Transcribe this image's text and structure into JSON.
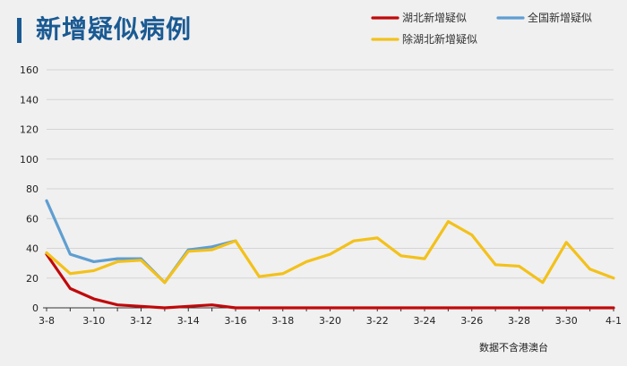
{
  "title": "新增疑似病例",
  "footnote": "数据不含港澳台",
  "colors": {
    "background": "#f0f0f0",
    "title": "#1a5a93",
    "grid": "#d4d4d4",
    "axis": "#333333"
  },
  "chart_data": {
    "type": "line",
    "title": "新增疑似病例",
    "xlabel": "",
    "ylabel": "",
    "ylim": [
      0,
      160
    ],
    "yticks": [
      0,
      20,
      40,
      60,
      80,
      100,
      120,
      140,
      160
    ],
    "grid": true,
    "legend_position": "top-right",
    "x": [
      "3-8",
      "3-9",
      "3-10",
      "3-11",
      "3-12",
      "3-13",
      "3-14",
      "3-15",
      "3-16",
      "3-17",
      "3-18",
      "3-19",
      "3-20",
      "3-21",
      "3-22",
      "3-23",
      "3-24",
      "3-25",
      "3-26",
      "3-27",
      "3-28",
      "3-29",
      "3-30",
      "3-31",
      "4-1"
    ],
    "xtick_labels": [
      "3-8",
      "3-10",
      "3-12",
      "3-14",
      "3-16",
      "3-18",
      "3-20",
      "3-22",
      "3-24",
      "3-26",
      "3-28",
      "3-30",
      "4-1"
    ],
    "series": [
      {
        "name": "湖北新增疑似",
        "color": "#c0090b",
        "values": [
          36,
          13,
          6,
          2,
          1,
          0,
          1,
          2,
          0,
          0,
          0,
          0,
          0,
          0,
          0,
          0,
          0,
          0,
          0,
          0,
          0,
          0,
          0,
          0,
          0
        ]
      },
      {
        "name": "全国新增疑似",
        "color": "#5f9ed1",
        "values": [
          72,
          36,
          31,
          33,
          33,
          17,
          39,
          41,
          45,
          null,
          null,
          null,
          null,
          null,
          null,
          null,
          null,
          null,
          null,
          null,
          null,
          null,
          null,
          null,
          null
        ]
      },
      {
        "name": "除湖北新增疑似",
        "color": "#f3c11b",
        "values": [
          37,
          23,
          25,
          31,
          32,
          17,
          38,
          39,
          45,
          21,
          23,
          31,
          36,
          45,
          47,
          35,
          33,
          58,
          49,
          29,
          28,
          17,
          44,
          26,
          20
        ]
      }
    ]
  }
}
